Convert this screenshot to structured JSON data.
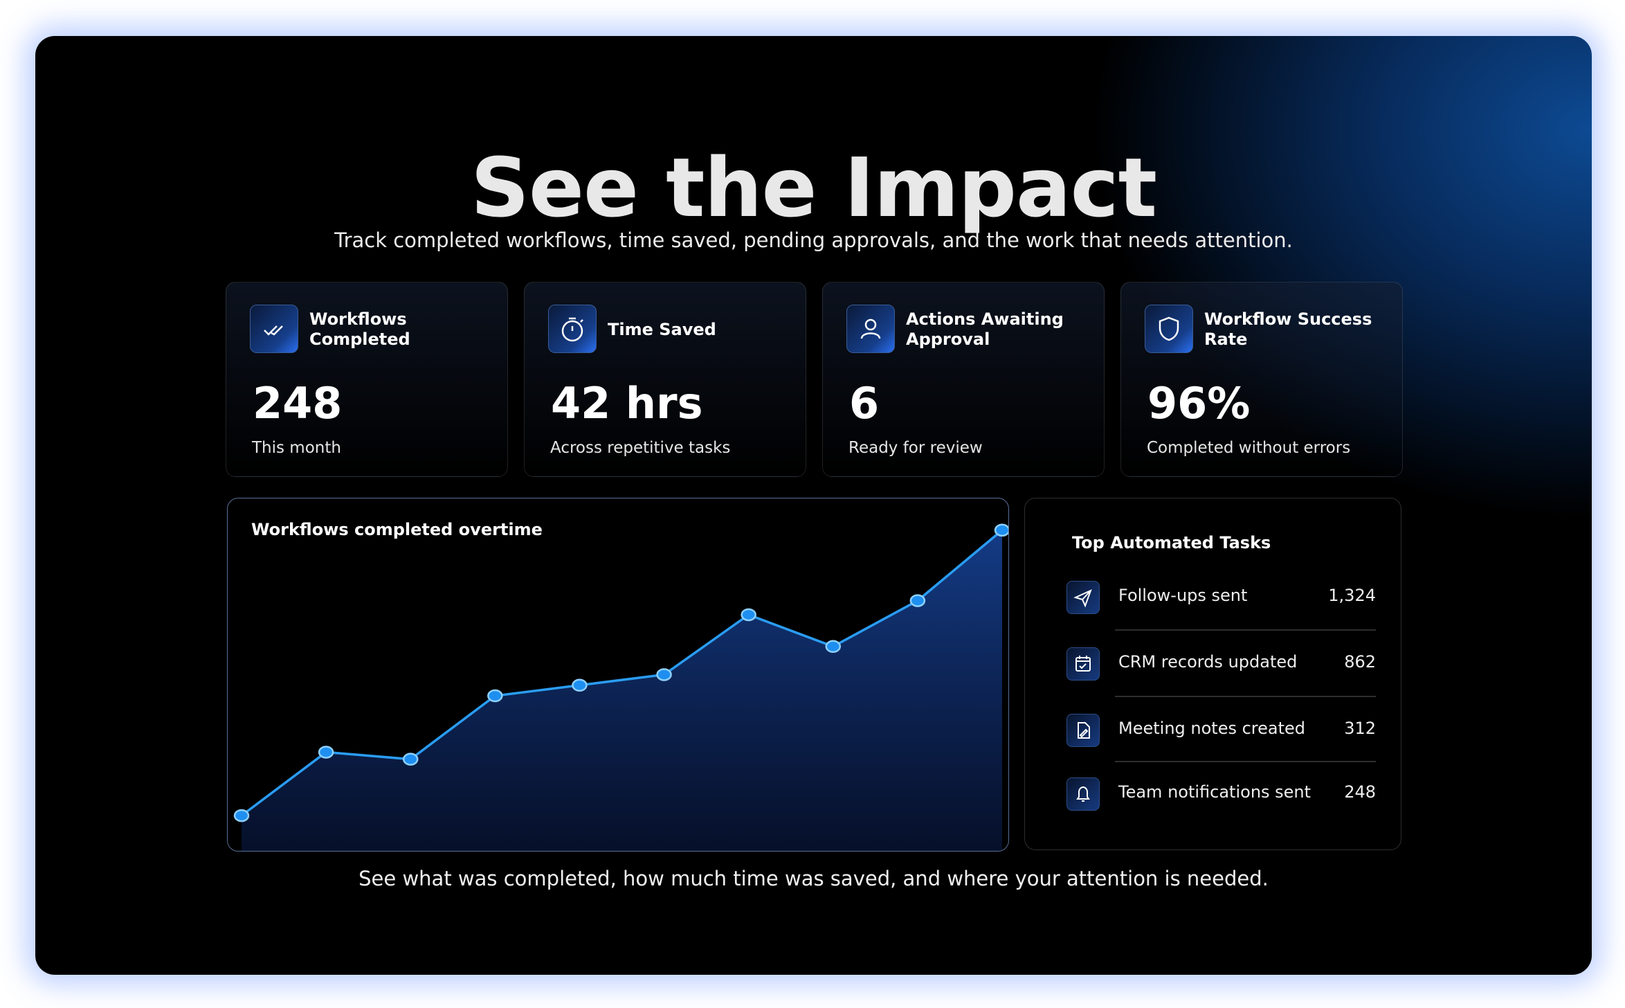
{
  "header": {
    "title": "See the Impact",
    "subtitle": "Track completed workflows, time saved, pending approvals, and the work that needs attention."
  },
  "stats": [
    {
      "label": "Workflows Completed",
      "value": "248",
      "note": "This month"
    },
    {
      "label": "Time Saved",
      "value": "42 hrs",
      "note": "Across repetitive tasks"
    },
    {
      "label": "Actions Awaiting Approval",
      "value": "6",
      "note": "Ready for review"
    },
    {
      "label": "Workflow Success Rate",
      "value": "96%",
      "note": "Completed without errors"
    }
  ],
  "chart_data": {
    "type": "line",
    "title": "Workflows completed overtime",
    "values": [
      10,
      28,
      26,
      44,
      47,
      50,
      67,
      58,
      71,
      91
    ],
    "ylim": [
      0,
      100
    ],
    "color": "#2a9df4"
  },
  "tasks": {
    "title": "Top Automated Tasks",
    "rows": [
      {
        "label": "Follow-ups sent",
        "value": "1,324"
      },
      {
        "label": "CRM records updated",
        "value": "862"
      },
      {
        "label": "Meeting notes created",
        "value": "312"
      },
      {
        "label": "Team notifications sent",
        "value": "248"
      }
    ]
  },
  "footer": {
    "text": "See what was completed, how much time was saved, and where your attention is needed."
  }
}
